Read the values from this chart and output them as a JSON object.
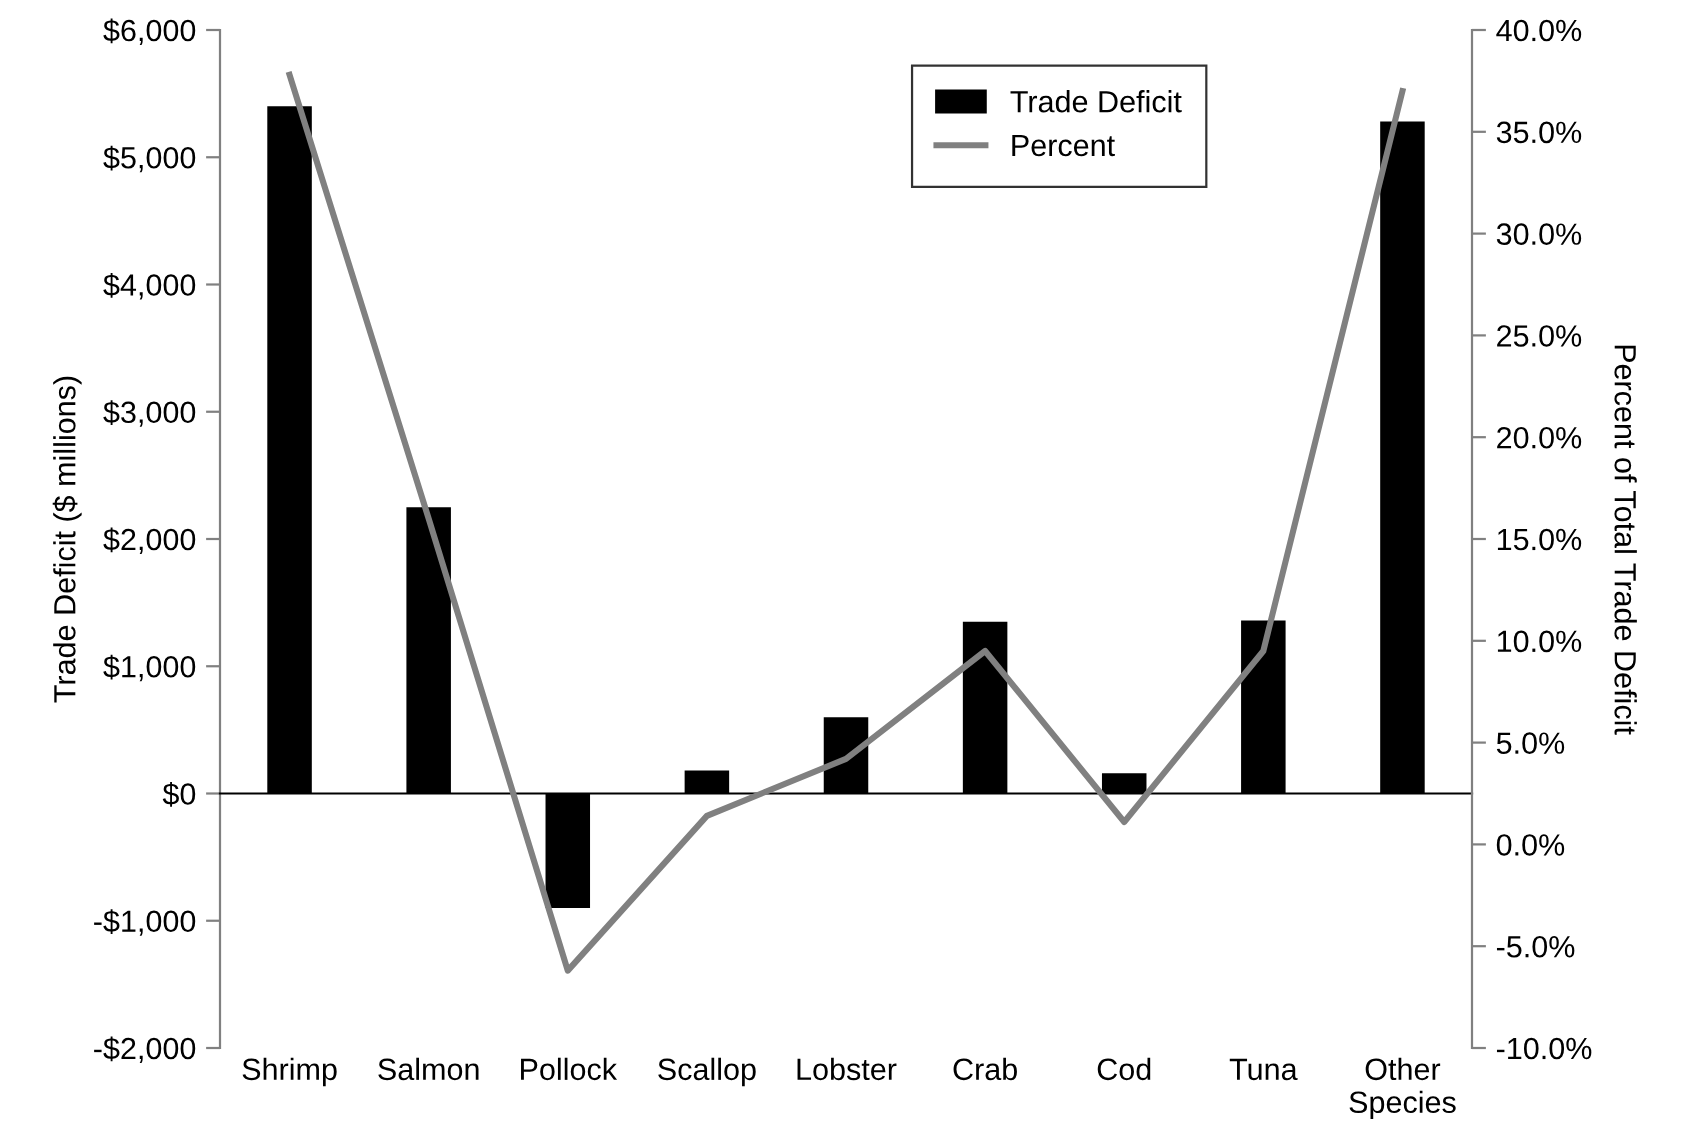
{
  "chart_data": {
    "type": "bar",
    "categories": [
      "Shrimp",
      "Salmon",
      "Pollock",
      "Scallop",
      "Lobster",
      "Crab",
      "Cod",
      "Tuna",
      "Other\nSpecies"
    ],
    "series": [
      {
        "name": "Trade Deficit",
        "color": "#000000",
        "values": [
          5400,
          2250,
          -900,
          180,
          600,
          1350,
          160,
          1360,
          5280
        ]
      },
      {
        "name": "Percent",
        "type": "line",
        "axis": "y2",
        "color": "#808080",
        "values": [
          37.8,
          16.0,
          -6.2,
          1.4,
          4.2,
          9.5,
          1.1,
          9.5,
          37.0
        ]
      }
    ],
    "ylabel": "Trade Deficit ($ millions)",
    "y2label": "Percent of Total Trade Deficit",
    "ylim": [
      -2000,
      6000
    ],
    "yticks": [
      {
        "value": -2000,
        "label": "-$2,000"
      },
      {
        "value": -1000,
        "label": "-$1,000"
      },
      {
        "value": 0,
        "label": "$0"
      },
      {
        "value": 1000,
        "label": "$1,000"
      },
      {
        "value": 2000,
        "label": "$2,000"
      },
      {
        "value": 3000,
        "label": "$3,000"
      },
      {
        "value": 4000,
        "label": "$4,000"
      },
      {
        "value": 5000,
        "label": "$5,000"
      },
      {
        "value": 6000,
        "label": "$6,000"
      }
    ],
    "y2lim": [
      -10,
      40
    ],
    "y2ticks": [
      {
        "value": -10,
        "label": "-10.0%"
      },
      {
        "value": -5,
        "label": "-5.0%"
      },
      {
        "value": 0,
        "label": "0.0%"
      },
      {
        "value": 5,
        "label": "5.0%"
      },
      {
        "value": 10,
        "label": "10.0%"
      },
      {
        "value": 15,
        "label": "15.0%"
      },
      {
        "value": 20,
        "label": "20.0%"
      },
      {
        "value": 25,
        "label": "25.0%"
      },
      {
        "value": 30,
        "label": "30.0%"
      },
      {
        "value": 35,
        "label": "35.0%"
      },
      {
        "value": 40,
        "label": "40.0%"
      }
    ],
    "legend": "top right"
  }
}
